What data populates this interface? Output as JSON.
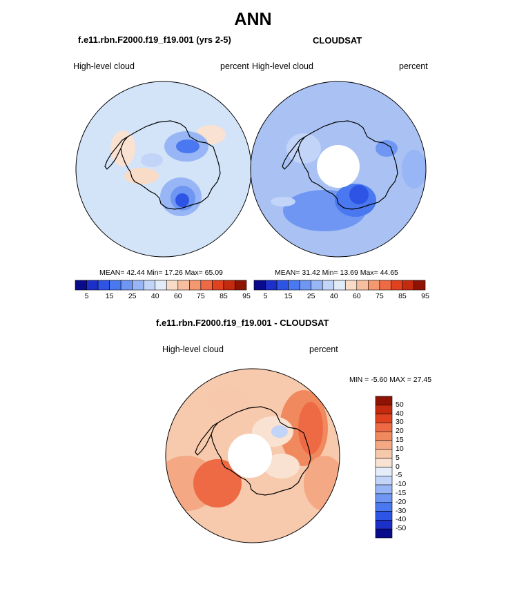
{
  "title": "ANN",
  "panels": {
    "model": {
      "case_title": "f.e11.rbn.F2000.f19_f19.001 (yrs 2-5)",
      "left_label": "High-level cloud",
      "right_label": "percent",
      "stats": "MEAN=  42.44   Min=  17.26   Max=  65.09"
    },
    "obs": {
      "case_title": "CLOUDSAT",
      "left_label": "High-level cloud",
      "right_label": "percent",
      "stats": "MEAN=  31.42   Min=  13.69   Max=  44.65"
    },
    "diff": {
      "case_title": "f.e11.rbn.F2000.f19_f19.001 - CLOUDSAT",
      "left_label": "High-level cloud",
      "right_label": "percent",
      "stats": "MIN =   -5.60  MAX =  27.45"
    }
  },
  "colorbars": {
    "top_ticks": [
      "5",
      "15",
      "25",
      "40",
      "60",
      "75",
      "85",
      "95"
    ],
    "top_colors": [
      "#0a0a8c",
      "#1c2fc9",
      "#2e54e6",
      "#4a78f0",
      "#6e96f2",
      "#98b6f5",
      "#c2d4f7",
      "#e2ebf8",
      "#f9dcc8",
      "#f8bea0",
      "#f49870",
      "#ee6a45",
      "#e0421f",
      "#c42a0e",
      "#8f1305"
    ],
    "diff_ticks": [
      "50",
      "40",
      "30",
      "20",
      "15",
      "10",
      "5",
      "0",
      "-5",
      "-10",
      "-15",
      "-20",
      "-30",
      "-40",
      "-50"
    ],
    "diff_colors": [
      "#8f1305",
      "#c42a0e",
      "#e0421f",
      "#ee6a45",
      "#f08a5e",
      "#f4a984",
      "#f8c8ac",
      "#fae2d2",
      "#e4edf8",
      "#c2d4f7",
      "#98b6f5",
      "#6e96f2",
      "#4a78f0",
      "#2e54e6",
      "#1c2fc9",
      "#0a0a8c"
    ]
  },
  "colors": {
    "model_bg": "#d3e3f8",
    "obs_bg": "#a9c2f3",
    "diff_bg": "#f7c9ad",
    "hole": "#ffffff"
  }
}
